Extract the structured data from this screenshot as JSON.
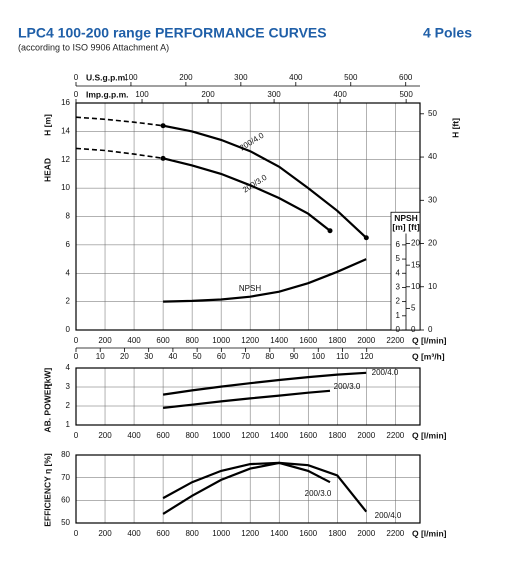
{
  "header": {
    "title": "LPC4 100-200 range PERFORMANCE CURVES",
    "poles": "4 Poles",
    "subtitle": "(according to ISO 9906 Attachment A)"
  },
  "chart_data": [
    {
      "type": "line",
      "y_title": "HEAD",
      "y_unit": "H [m]",
      "y2_unit": "H [ft]",
      "x_label": "Q [l/min]",
      "xlim": [
        0,
        2370
      ],
      "xticks": [
        0,
        200,
        400,
        600,
        800,
        1000,
        1200,
        1400,
        1600,
        1800,
        2000,
        2200
      ],
      "ylim": [
        0,
        16
      ],
      "yticks": [
        0,
        2,
        4,
        6,
        8,
        10,
        12,
        14,
        16
      ],
      "y2lim": [
        0,
        52.5
      ],
      "y2ticks": [
        0,
        10,
        20,
        30,
        40,
        50
      ],
      "grid": true,
      "color": "#000000",
      "extra_x_axes": [
        {
          "label": "U.S.g.p.m.",
          "position": "top",
          "xlim": [
            0,
            626
          ],
          "xticks": [
            0,
            100,
            200,
            300,
            400,
            500,
            600
          ]
        },
        {
          "label": "Imp.g.p.m.",
          "position": "top",
          "xlim": [
            0,
            521
          ],
          "xticks": [
            0,
            100,
            200,
            300,
            400,
            500
          ]
        },
        {
          "label": "Q [m³/h]",
          "position": "bottom",
          "xlim": [
            0,
            142
          ],
          "xticks": [
            0,
            10,
            20,
            30,
            40,
            50,
            60,
            70,
            80,
            90,
            100,
            110,
            120
          ]
        }
      ],
      "npsh_axis": {
        "title": "NPSH",
        "unit_m": "[m]",
        "unit_ft": "[ft]",
        "yticks_m": [
          0,
          1,
          2,
          3,
          4,
          5,
          6
        ],
        "ylim_ft": [
          0,
          52.5
        ],
        "yticks_ft": [
          0,
          5,
          10,
          15,
          20
        ]
      },
      "series": [
        {
          "name": "200/4.0",
          "x": [
            600,
            800,
            1000,
            1200,
            1400,
            1600,
            1800,
            2000
          ],
          "values": [
            14.4,
            14.0,
            13.4,
            12.6,
            11.5,
            10.0,
            8.4,
            6.5
          ]
        },
        {
          "name": "200/3.0",
          "x": [
            600,
            800,
            1000,
            1200,
            1400,
            1600,
            1750
          ],
          "values": [
            12.1,
            11.6,
            11.0,
            10.2,
            9.3,
            8.2,
            7.0
          ]
        },
        {
          "name": "NPSH",
          "x": [
            600,
            800,
            1000,
            1200,
            1400,
            1600,
            1800,
            2000
          ],
          "values": [
            2.0,
            2.05,
            2.15,
            2.35,
            2.7,
            3.3,
            4.1,
            5.0
          ]
        },
        {
          "style": "dashed",
          "x": [
            0,
            200,
            400,
            600
          ],
          "values": [
            15.0,
            14.85,
            14.65,
            14.4
          ]
        },
        {
          "style": "dashed",
          "x": [
            0,
            200,
            400,
            600
          ],
          "values": [
            12.8,
            12.65,
            12.4,
            12.1
          ]
        }
      ]
    },
    {
      "type": "line",
      "y_title": "AB. POWER",
      "y_unit": "[kW]",
      "x_label": "Q [l/min]",
      "xlim": [
        0,
        2370
      ],
      "xticks": [
        0,
        200,
        400,
        600,
        800,
        1000,
        1200,
        1400,
        1600,
        1800,
        2000,
        2200
      ],
      "ylim": [
        1,
        4
      ],
      "yticks": [
        1,
        2,
        3,
        4
      ],
      "grid": true,
      "color": "#000000",
      "series": [
        {
          "name": "200/4.0",
          "x": [
            600,
            800,
            1000,
            1200,
            1400,
            1600,
            1800,
            2000
          ],
          "values": [
            2.6,
            2.82,
            3.02,
            3.2,
            3.37,
            3.52,
            3.65,
            3.75
          ]
        },
        {
          "name": "200/3.0",
          "x": [
            600,
            800,
            1000,
            1200,
            1400,
            1600,
            1750
          ],
          "values": [
            1.9,
            2.07,
            2.24,
            2.4,
            2.55,
            2.7,
            2.8
          ]
        }
      ]
    },
    {
      "type": "line",
      "y_title": "EFFICIENCY η [%]",
      "x_label": "Q [l/min]",
      "xlim": [
        0,
        2370
      ],
      "xticks": [
        0,
        200,
        400,
        600,
        800,
        1000,
        1200,
        1400,
        1600,
        1800,
        2000,
        2200
      ],
      "ylim": [
        50,
        80
      ],
      "yticks": [
        50,
        60,
        70,
        80
      ],
      "grid": true,
      "color": "#000000",
      "series": [
        {
          "name": "200/3.0",
          "x": [
            600,
            800,
            1000,
            1200,
            1400,
            1600,
            1750
          ],
          "values": [
            61,
            68,
            73,
            76,
            76.5,
            73,
            68
          ]
        },
        {
          "name": "200/4.0",
          "x": [
            600,
            800,
            1000,
            1200,
            1400,
            1600,
            1800,
            2000
          ],
          "values": [
            54,
            62,
            69,
            74,
            76.5,
            75.5,
            71,
            55
          ]
        }
      ]
    }
  ]
}
